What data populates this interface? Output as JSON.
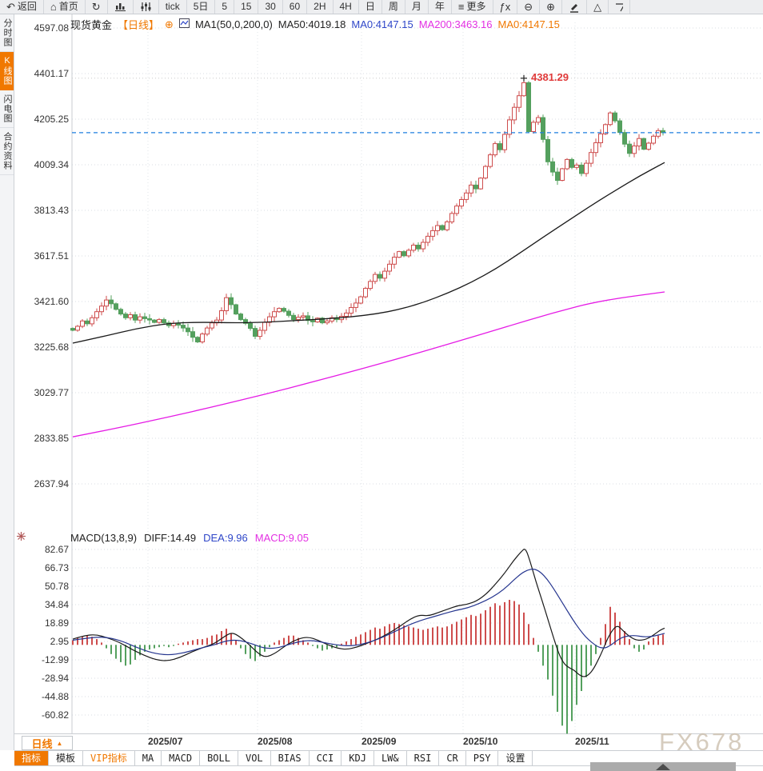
{
  "topbar": {
    "items": [
      {
        "name": "back-button",
        "glyph": "↶",
        "label": "返回"
      },
      {
        "name": "home-button",
        "glyph": "⌂",
        "label": "首页"
      },
      {
        "name": "refresh-button",
        "glyph": "↻",
        "label": ""
      },
      {
        "name": "bar-chart-button",
        "svg": "bars"
      },
      {
        "name": "candle-style-button",
        "svg": "sliders"
      },
      {
        "name": "interval-tick-button",
        "label": "tick"
      },
      {
        "name": "interval-5d-button",
        "label": "5日"
      },
      {
        "name": "interval-5-button",
        "label": "5"
      },
      {
        "name": "interval-15-button",
        "label": "15"
      },
      {
        "name": "interval-30-button",
        "label": "30"
      },
      {
        "name": "interval-60-button",
        "label": "60"
      },
      {
        "name": "interval-2h-button",
        "label": "2H"
      },
      {
        "name": "interval-4h-button",
        "label": "4H"
      },
      {
        "name": "interval-day-button",
        "label": "日"
      },
      {
        "name": "interval-week-button",
        "label": "周"
      },
      {
        "name": "interval-month-button",
        "label": "月"
      },
      {
        "name": "interval-year-button",
        "label": "年"
      },
      {
        "name": "more-button",
        "glyph": "≡",
        "label": "更多"
      },
      {
        "name": "fx-function-button",
        "glyph": "ƒx"
      },
      {
        "name": "zoom-out-button",
        "glyph": "⊖"
      },
      {
        "name": "zoom-in-button",
        "glyph": "⊕"
      },
      {
        "name": "draw-button",
        "svg": "pencil"
      },
      {
        "name": "shape-triangle-button",
        "glyph": "△"
      },
      {
        "name": "clipped-tool-button",
        "svg": "clip"
      }
    ]
  },
  "sidebar": {
    "items": [
      {
        "label": "分时图",
        "active": false
      },
      {
        "label": "K线图",
        "active": true
      },
      {
        "label": "闪电图",
        "active": false
      },
      {
        "label": "合约资料",
        "active": false
      }
    ]
  },
  "chart_header": {
    "symbol": "现货黄金",
    "period_tag": "【日线】",
    "add_icon": "⊕",
    "ma_settings": "MA1(50,0,200,0)",
    "ma50": "MA50:4019.18",
    "ma0_blue": "MA0:4147.15",
    "ma200": "MA200:3463.16",
    "ma0_orange": "MA0:4147.15"
  },
  "macd_header": {
    "title": "MACD(13,8,9)",
    "diff": "DIFF:14.49",
    "dea": "DEA:9.96",
    "macd": "MACD:9.05"
  },
  "bottom": {
    "period_button": "日线",
    "period_arrow": "▲",
    "tabs": [
      {
        "label": "指标",
        "active": true
      },
      {
        "label": "模板"
      },
      {
        "label": "VIP指标",
        "vip": true
      },
      {
        "label": "MA"
      },
      {
        "label": "MACD"
      },
      {
        "label": "BOLL"
      },
      {
        "label": "VOL"
      },
      {
        "label": "BIAS"
      },
      {
        "label": "CCI"
      },
      {
        "label": "KDJ"
      },
      {
        "label": "LW&"
      },
      {
        "label": "RSI"
      },
      {
        "label": "CR"
      },
      {
        "label": "PSY"
      },
      {
        "label": "设置"
      }
    ]
  },
  "watermark": "FX678",
  "colors": {
    "accent_orange": "#F07800",
    "candle_up": "#CE4D4D",
    "candle_down": "#54A05E",
    "ma50": "#1A1A1A",
    "ma200": "#E51BE5",
    "diff": "#1A1A1A",
    "dea": "#26368F",
    "current_price_line": "#1E7FDF",
    "peak_label": "#E03A3A",
    "grid": "#D9DCE3"
  },
  "chart_data": {
    "type": "candlestick",
    "title": "现货黄金 日线",
    "price_axis": {
      "labels": [
        "4597.08",
        "4401.17",
        "4205.25",
        "4009.34",
        "3813.43",
        "3617.51",
        "3421.60",
        "3225.68",
        "3029.77",
        "2833.85",
        "2637.94"
      ],
      "values": [
        4597.08,
        4401.17,
        4205.25,
        4009.34,
        3813.43,
        3617.51,
        3421.6,
        3225.68,
        3029.77,
        2833.85,
        2637.94
      ]
    },
    "macd_axis": {
      "labels": [
        "82.67",
        "66.73",
        "50.78",
        "34.84",
        "18.89",
        "2.95",
        "-12.99",
        "-28.94",
        "-44.88",
        "-60.82"
      ],
      "values": [
        82.67,
        66.73,
        50.78,
        34.84,
        18.89,
        2.95,
        -12.99,
        -28.94,
        -44.88,
        -60.82
      ]
    },
    "x_axis": {
      "labels": [
        "2025/07",
        "2025/08",
        "2025/09",
        "2025/10",
        "2025/11"
      ],
      "positions": [
        185,
        322,
        452,
        579,
        719
      ]
    },
    "current_price": 4147.15,
    "peak": {
      "index": 94,
      "high": 4381.29,
      "label": "4381.29"
    },
    "closes": [
      3298,
      3315,
      3338,
      3326,
      3352,
      3378,
      3402,
      3428,
      3412,
      3388,
      3368,
      3352,
      3365,
      3342,
      3356,
      3348,
      3342,
      3332,
      3344,
      3330,
      3318,
      3328,
      3320,
      3308,
      3292,
      3268,
      3248,
      3282,
      3308,
      3330,
      3342,
      3382,
      3438,
      3408,
      3368,
      3344,
      3328,
      3306,
      3272,
      3298,
      3332,
      3356,
      3378,
      3392,
      3380,
      3362,
      3344,
      3354,
      3360,
      3340,
      3334,
      3350,
      3330,
      3338,
      3352,
      3344,
      3358,
      3372,
      3396,
      3415,
      3442,
      3478,
      3508,
      3538,
      3522,
      3552,
      3582,
      3612,
      3636,
      3618,
      3642,
      3664,
      3648,
      3676,
      3702,
      3726,
      3748,
      3730,
      3764,
      3800,
      3832,
      3860,
      3888,
      3922,
      3906,
      3952,
      4002,
      4052,
      4100,
      4074,
      4140,
      4202,
      4256,
      4306,
      4362,
      4152,
      4192,
      4212,
      4118,
      4022,
      3978,
      3942,
      3992,
      4032,
      3998,
      4008,
      3972,
      4016,
      4062,
      4104,
      4142,
      4182,
      4232,
      4198,
      4148,
      4098,
      4058,
      4090,
      4122,
      4076,
      4102,
      4132,
      4156,
      4147
    ],
    "macd_hist": [
      4,
      6,
      7,
      8,
      7,
      5,
      2,
      -3,
      -8,
      -12,
      -15,
      -18,
      -17,
      -13,
      -9,
      -6,
      -4,
      -3,
      -2,
      -1,
      -2,
      -1,
      1,
      2,
      3,
      4,
      5,
      5,
      6,
      8,
      9,
      12,
      14,
      10,
      4,
      -3,
      -8,
      -12,
      -14,
      -10,
      -6,
      -2,
      2,
      4,
      6,
      8,
      8,
      6,
      4,
      2,
      -1,
      -3,
      -5,
      -4,
      -3,
      -2,
      1,
      3,
      5,
      7,
      9,
      11,
      13,
      15,
      14,
      16,
      18,
      19,
      18,
      17,
      16,
      15,
      14,
      13,
      14,
      15,
      16,
      15,
      16,
      18,
      20,
      22,
      24,
      26,
      25,
      27,
      30,
      33,
      36,
      34,
      37,
      39,
      38,
      35,
      28,
      18,
      6,
      -6,
      -18,
      -30,
      -44,
      -58,
      -70,
      -77,
      -66,
      -52,
      -40,
      -28,
      -18,
      -8,
      6,
      18,
      33,
      28,
      20,
      12,
      5,
      -3,
      -6,
      -4,
      3,
      6,
      8,
      9
    ],
    "diff_line": [
      [
        91,
        5
      ],
      [
        105,
        8
      ],
      [
        120,
        9
      ],
      [
        135,
        6
      ],
      [
        150,
        2
      ],
      [
        165,
        -4
      ],
      [
        180,
        -9
      ],
      [
        195,
        -13
      ],
      [
        210,
        -14
      ],
      [
        225,
        -11
      ],
      [
        240,
        -6
      ],
      [
        255,
        -2
      ],
      [
        268,
        1
      ],
      [
        280,
        7
      ],
      [
        290,
        11
      ],
      [
        300,
        7
      ],
      [
        312,
        0
      ],
      [
        322,
        -7
      ],
      [
        332,
        -11
      ],
      [
        345,
        -7
      ],
      [
        358,
        0
      ],
      [
        372,
        5
      ],
      [
        385,
        7
      ],
      [
        398,
        4
      ],
      [
        410,
        0
      ],
      [
        422,
        -3
      ],
      [
        434,
        -4
      ],
      [
        446,
        -2
      ],
      [
        458,
        1
      ],
      [
        472,
        5
      ],
      [
        486,
        10
      ],
      [
        500,
        16
      ],
      [
        512,
        22
      ],
      [
        524,
        26
      ],
      [
        536,
        25
      ],
      [
        548,
        28
      ],
      [
        560,
        31
      ],
      [
        572,
        34
      ],
      [
        584,
        35
      ],
      [
        596,
        38
      ],
      [
        608,
        44
      ],
      [
        620,
        53
      ],
      [
        632,
        63
      ],
      [
        642,
        73
      ],
      [
        652,
        81
      ],
      [
        657,
        84
      ],
      [
        663,
        72
      ],
      [
        670,
        55
      ],
      [
        678,
        38
      ],
      [
        686,
        20
      ],
      [
        694,
        2
      ],
      [
        700,
        -10
      ],
      [
        706,
        -17
      ],
      [
        712,
        -20
      ],
      [
        718,
        -22
      ],
      [
        724,
        -26
      ],
      [
        730,
        -28
      ],
      [
        736,
        -26
      ],
      [
        742,
        -21
      ],
      [
        748,
        -13
      ],
      [
        754,
        -4
      ],
      [
        760,
        6
      ],
      [
        766,
        13
      ],
      [
        772,
        17
      ],
      [
        778,
        13
      ],
      [
        784,
        9
      ],
      [
        790,
        6
      ],
      [
        796,
        4
      ],
      [
        802,
        4
      ],
      [
        808,
        5
      ],
      [
        814,
        7
      ],
      [
        820,
        10
      ],
      [
        826,
        13
      ],
      [
        831,
        14.5
      ]
    ],
    "dea_line": [
      [
        91,
        4
      ],
      [
        110,
        6
      ],
      [
        130,
        7
      ],
      [
        150,
        4
      ],
      [
        170,
        -2
      ],
      [
        190,
        -7
      ],
      [
        210,
        -9
      ],
      [
        230,
        -7
      ],
      [
        250,
        -3
      ],
      [
        268,
        0
      ],
      [
        285,
        4
      ],
      [
        300,
        4
      ],
      [
        315,
        1
      ],
      [
        330,
        -3
      ],
      [
        345,
        -3
      ],
      [
        360,
        0
      ],
      [
        375,
        3
      ],
      [
        390,
        4
      ],
      [
        405,
        2
      ],
      [
        420,
        0
      ],
      [
        435,
        -1
      ],
      [
        450,
        0
      ],
      [
        465,
        3
      ],
      [
        480,
        7
      ],
      [
        495,
        12
      ],
      [
        510,
        17
      ],
      [
        525,
        21
      ],
      [
        540,
        24
      ],
      [
        555,
        27
      ],
      [
        570,
        30
      ],
      [
        585,
        32
      ],
      [
        600,
        36
      ],
      [
        615,
        41
      ],
      [
        630,
        48
      ],
      [
        642,
        56
      ],
      [
        652,
        62
      ],
      [
        660,
        65
      ],
      [
        668,
        66
      ],
      [
        676,
        63
      ],
      [
        684,
        57
      ],
      [
        692,
        49
      ],
      [
        700,
        40
      ],
      [
        708,
        31
      ],
      [
        716,
        22
      ],
      [
        724,
        14
      ],
      [
        732,
        7
      ],
      [
        740,
        2
      ],
      [
        748,
        -2
      ],
      [
        756,
        -3
      ],
      [
        762,
        -1
      ],
      [
        768,
        2
      ],
      [
        774,
        5
      ],
      [
        780,
        7
      ],
      [
        788,
        8
      ],
      [
        796,
        8
      ],
      [
        804,
        7
      ],
      [
        812,
        7
      ],
      [
        820,
        8
      ],
      [
        826,
        9
      ],
      [
        831,
        10
      ]
    ],
    "ma50_line": [
      [
        91,
        3243
      ],
      [
        130,
        3272
      ],
      [
        170,
        3305
      ],
      [
        210,
        3328
      ],
      [
        250,
        3333
      ],
      [
        290,
        3330
      ],
      [
        330,
        3332
      ],
      [
        370,
        3340
      ],
      [
        410,
        3348
      ],
      [
        440,
        3356
      ],
      [
        470,
        3368
      ],
      [
        500,
        3388
      ],
      [
        530,
        3418
      ],
      [
        560,
        3458
      ],
      [
        590,
        3505
      ],
      [
        620,
        3562
      ],
      [
        650,
        3630
      ],
      [
        680,
        3700
      ],
      [
        710,
        3768
      ],
      [
        740,
        3836
      ],
      [
        770,
        3900
      ],
      [
        800,
        3962
      ],
      [
        831,
        4019
      ]
    ],
    "ma200_line": [
      [
        91,
        2840
      ],
      [
        150,
        2880
      ],
      [
        210,
        2925
      ],
      [
        270,
        2972
      ],
      [
        330,
        3022
      ],
      [
        390,
        3075
      ],
      [
        450,
        3130
      ],
      [
        510,
        3188
      ],
      [
        570,
        3248
      ],
      [
        630,
        3310
      ],
      [
        690,
        3372
      ],
      [
        750,
        3425
      ],
      [
        831,
        3463
      ]
    ]
  }
}
